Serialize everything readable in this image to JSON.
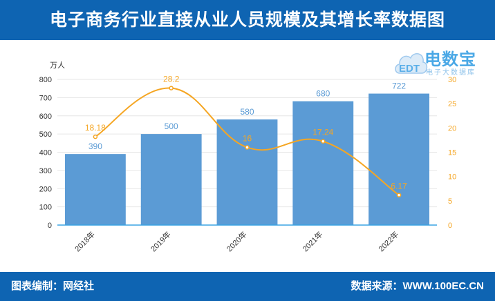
{
  "header": {
    "title": "电子商务行业直接从业人员规模及其增长率数据图"
  },
  "footer": {
    "left": "图表编制：网经社",
    "right": "数据来源：WWW.100EC.CN"
  },
  "logo": {
    "name": "电数宝",
    "subtitle": "电子大数据库",
    "mark": "EDT",
    "color": "#4aa8e6"
  },
  "chart_data": {
    "type": "bar",
    "categories": [
      "2018年",
      "2019年",
      "2020年",
      "2021年",
      "2022年"
    ],
    "series": [
      {
        "type": "bar",
        "axis": "left",
        "values": [
          390,
          500,
          580,
          680,
          722
        ],
        "labels": [
          "390",
          "500",
          "580",
          "680",
          "722"
        ],
        "color": "#5b9bd5"
      },
      {
        "type": "line",
        "axis": "right",
        "smooth": true,
        "values": [
          18.18,
          28.2,
          16,
          17.24,
          6.17
        ],
        "labels": [
          "18.18",
          "28.2",
          "16",
          "17.24",
          "6.17"
        ],
        "color": "#f5a623"
      }
    ],
    "ylabel": "万人",
    "ylim": [
      0,
      800
    ],
    "yticks": [
      "0",
      "100",
      "200",
      "300",
      "400",
      "500",
      "600",
      "700",
      "800"
    ],
    "y2lim": [
      0,
      30
    ],
    "y2ticks": [
      "0",
      "5",
      "10",
      "15",
      "20",
      "25",
      "30"
    ],
    "grid": true,
    "x_label_rotation": -45
  }
}
